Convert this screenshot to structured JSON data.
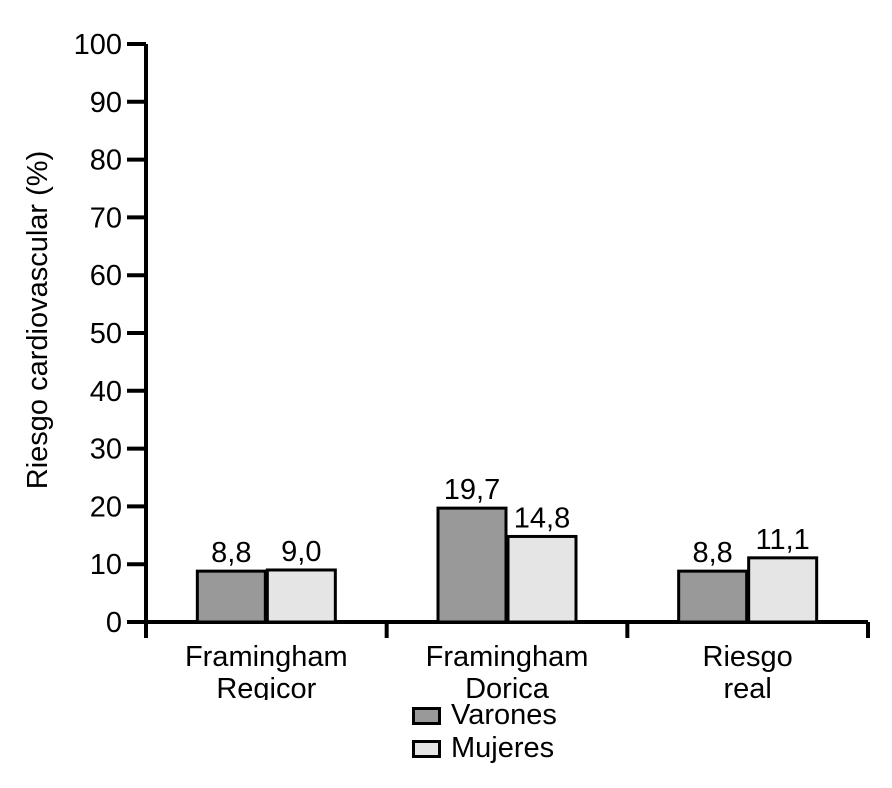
{
  "chart_data": {
    "type": "bar",
    "title": "",
    "xlabel": "",
    "ylabel": "Riesgo cardiovascular (%)",
    "ylim": [
      0,
      100
    ],
    "yticks": [
      0,
      10,
      20,
      30,
      40,
      50,
      60,
      70,
      80,
      90,
      100
    ],
    "categories": [
      "Framingham Regicor",
      "Framingham Dorica",
      "Riesgo real"
    ],
    "category_label_lines": [
      [
        "Framingham",
        "Regicor"
      ],
      [
        "Framingham",
        "Dorica"
      ],
      [
        "Riesgo",
        "real"
      ]
    ],
    "series": [
      {
        "name": "Varones",
        "color": "#999999",
        "values": [
          8.8,
          19.7,
          8.8
        ],
        "value_labels": [
          "8,8",
          "19,7",
          "8,8"
        ]
      },
      {
        "name": "Mujeres",
        "color": "#e5e5e5",
        "values": [
          9.0,
          14.8,
          11.1
        ],
        "value_labels": [
          "9,0",
          "14,8",
          "11,1"
        ]
      }
    ],
    "legend_position": "bottom",
    "grid": false,
    "background": "#ffffff",
    "axis_color": "#000000",
    "bar_border_color": "#000000",
    "text_color": "#000000"
  }
}
